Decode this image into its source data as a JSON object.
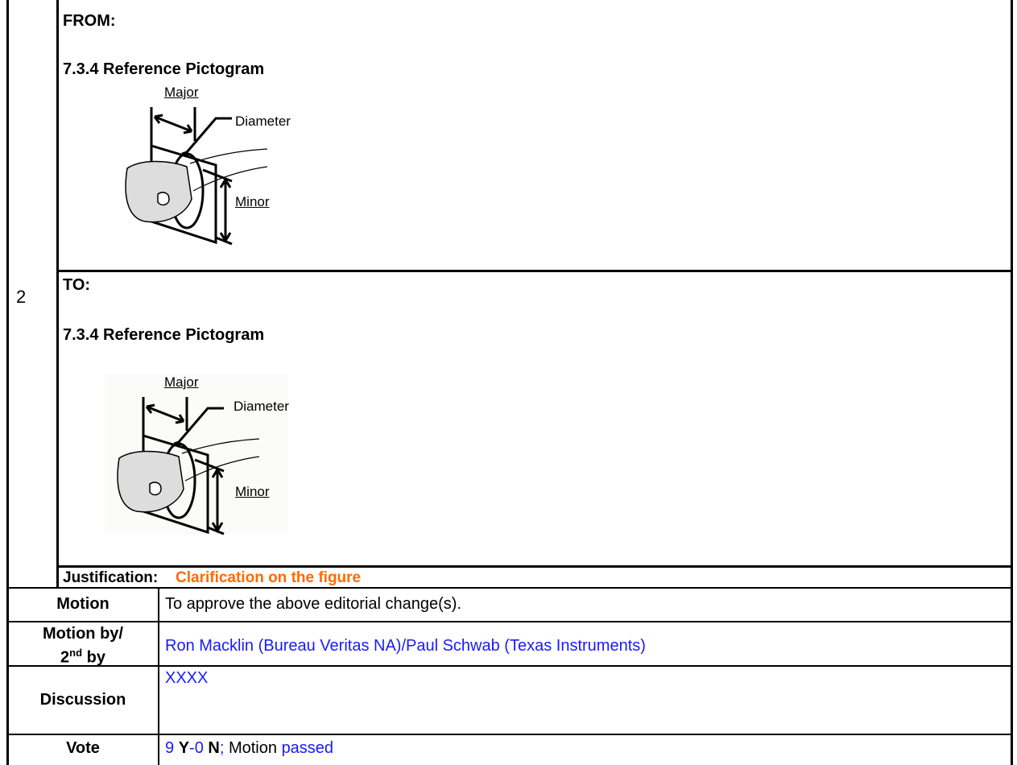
{
  "row_number": "2",
  "from": {
    "heading": "FROM:",
    "section": "7.3.4 Reference Pictogram",
    "figure": {
      "major": "Major",
      "diameter": "Diameter",
      "minor": "Minor"
    }
  },
  "to": {
    "heading": "TO:",
    "section": "7.3.4 Reference Pictogram",
    "figure": {
      "major": "Major",
      "diameter": "Diameter",
      "minor": "Minor"
    }
  },
  "justification": {
    "label": "Justification:",
    "value": "Clarification on the figure"
  },
  "motion": {
    "label": "Motion",
    "value": "To approve the above editorial change(s)."
  },
  "motion_by": {
    "label": [
      "Motion by/",
      "2",
      "nd",
      "by"
    ],
    "value": "Ron Macklin (Bureau Veritas NA)/Paul Schwab (Texas Instruments)"
  },
  "discussion": {
    "label": "Discussion",
    "value": "XXXX"
  },
  "vote": {
    "label": "Vote",
    "parts": [
      "9",
      "Y",
      "-",
      "0",
      "N",
      ";",
      "Motion",
      "passed"
    ]
  }
}
